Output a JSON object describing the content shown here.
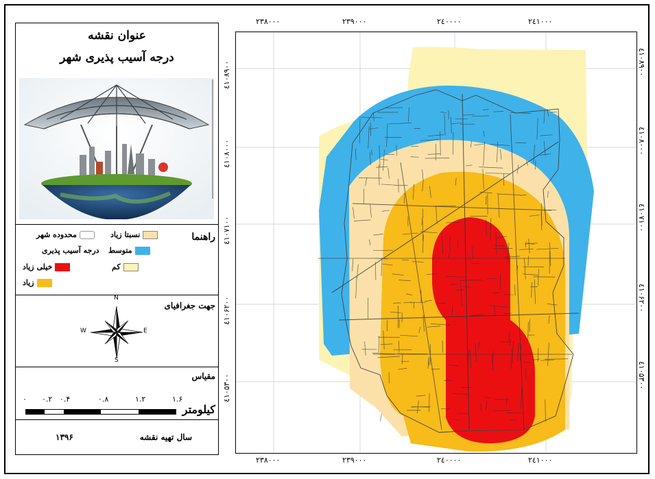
{
  "legend_panel": {
    "title_line1": "عنوان نقشه",
    "title_line2": "درجه آسیب پذیری شهر",
    "legend_heading": "راهنما",
    "legend_items": {
      "relatively_high": "نسبتا زیاد",
      "city_boundary": "محدوده شهر",
      "medium": "متوسط",
      "vulnerability_degree": "درجه آسیب پذیری",
      "low": "کم",
      "very_high": "خیلی زیاد",
      "high": "زیاد"
    },
    "north_heading": "جهت جغرافیای",
    "compass": {
      "n": "N",
      "s": "S",
      "e": "E",
      "w": "W"
    },
    "scale_heading": "مقیاس",
    "scale_labels": [
      "۰",
      "۰.۲",
      "۰.۴",
      "۰.۸",
      "۱.۲",
      "۱.۶"
    ],
    "scale_unit": "کیلومتر",
    "year_label": "سال تهیه نقشه",
    "year_value": "۱۳۹۶"
  },
  "map": {
    "x_ticks": [
      "۲۳۸۰۰۰",
      "۲۳۹۰۰۰",
      "۲٤۰۰۰۰",
      "۲٤۱۰۰۰"
    ],
    "y_ticks": [
      "٤۱۰۸۹۰۰",
      "٤۱۰۸۰۰۰",
      "٤۱۰۷۱۰۰",
      "٤۱۰۶۲۰۰",
      "٤۱۰۵۳۰۰"
    ],
    "colors": {
      "low": "#fcf3b5",
      "medium": "#3fb2ea",
      "relatively_high": "#fbe1a9",
      "high": "#f7bb1a",
      "very_high": "#eb0f12",
      "grid": "#d7d7d7"
    }
  }
}
